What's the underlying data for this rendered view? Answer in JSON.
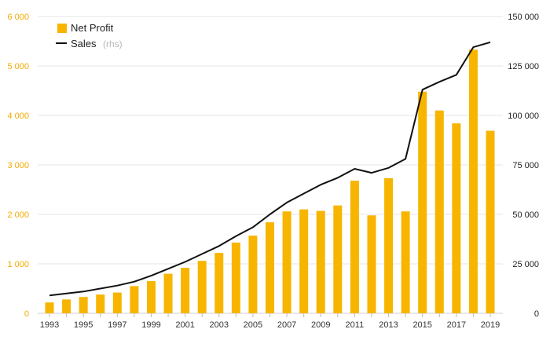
{
  "chart_data": {
    "type": "bar",
    "x": [
      1993,
      1994,
      1995,
      1996,
      1997,
      1998,
      1999,
      2000,
      2001,
      2002,
      2003,
      2004,
      2005,
      2006,
      2007,
      2008,
      2009,
      2010,
      2011,
      2012,
      2013,
      2014,
      2015,
      2016,
      2017,
      2018,
      2019
    ],
    "x_tick_labels": [
      "1993",
      "1995",
      "1997",
      "1999",
      "2001",
      "2003",
      "2005",
      "2007",
      "2009",
      "2011",
      "2013",
      "2015",
      "2017",
      "2019"
    ],
    "series": [
      {
        "name": "Net Profit",
        "type": "bar",
        "axis": "left",
        "color": "#f7b500",
        "values": [
          220,
          280,
          330,
          380,
          420,
          550,
          650,
          800,
          920,
          1060,
          1220,
          1430,
          1570,
          1840,
          2060,
          2100,
          2070,
          2180,
          2680,
          1980,
          2730,
          2060,
          4480,
          4100,
          3840,
          5330,
          3690
        ]
      },
      {
        "name": "Sales",
        "name_suffix": "(rhs)",
        "type": "line",
        "axis": "right",
        "color": "#111111",
        "values": [
          9000,
          10000,
          11000,
          12500,
          14000,
          16000,
          19000,
          22500,
          26000,
          30000,
          34000,
          39000,
          43500,
          50000,
          56000,
          60500,
          65000,
          68500,
          73000,
          71000,
          73500,
          78000,
          113000,
          117000,
          120500,
          134500,
          137000
        ]
      }
    ],
    "y_left": {
      "ylim": [
        0,
        6000
      ],
      "ticks": [
        "0",
        "1 000",
        "2 000",
        "3 000",
        "4 000",
        "5 000",
        "6 000"
      ],
      "color": "#f4a900"
    },
    "y_right": {
      "ylim": [
        0,
        150000
      ],
      "ticks": [
        "0",
        "25 000",
        "50 000",
        "75 000",
        "100 000",
        "125 000",
        "150 000"
      ],
      "color": "#222222"
    },
    "legend": {
      "placement": "top-left"
    },
    "grid": true
  }
}
